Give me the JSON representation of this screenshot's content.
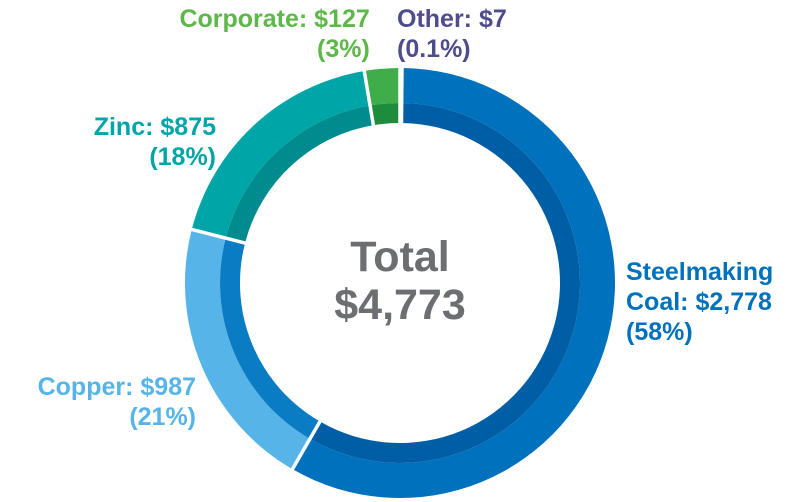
{
  "chart_data": {
    "type": "pie",
    "title": "",
    "center_label": {
      "line1": "Total",
      "line2": "$4,773"
    },
    "slices": [
      {
        "name": "Other",
        "label": "Other: $7",
        "percent_label": "(0.1%)",
        "value": 7,
        "color": "#4e4c8a",
        "inner_color": "#3d3b73"
      },
      {
        "name": "Steelmaking Coal",
        "label_lines": [
          "Steelmaking",
          "Coal: $2,778"
        ],
        "percent_label": "(58%)",
        "value": 2778,
        "color": "#0071bc",
        "inner_color": "#005ea6"
      },
      {
        "name": "Copper",
        "label": "Copper: $987",
        "percent_label": "(21%)",
        "value": 987,
        "color": "#56b4e9",
        "inner_color": "#0a7cc4"
      },
      {
        "name": "Zinc",
        "label": "Zinc: $875",
        "percent_label": "(18%)",
        "value": 875,
        "color": "#00a5a8",
        "inner_color": "#008c8f"
      },
      {
        "name": "Corporate",
        "label": "Corporate: $127",
        "percent_label": "(3%)",
        "value": 127,
        "color": "#3fae49",
        "inner_color": "#1d8c3c"
      }
    ]
  }
}
